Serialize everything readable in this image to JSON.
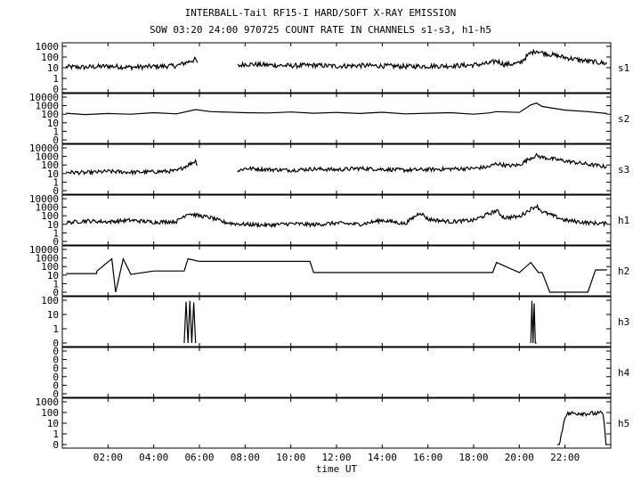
{
  "header": {
    "title": "INTERBALL-Tail RF15-I HARD/SOFT X-RAY EMISSION",
    "subtitle": "SOW 03:20 24:00 970725  COUNT RATE IN CHANNELS s1-s3, h1-h5"
  },
  "chart_data": {
    "type": "line",
    "xlabel": "time UT",
    "x_ticks": [
      "02:00",
      "04:00",
      "06:00",
      "08:00",
      "10:00",
      "12:00",
      "14:00",
      "16:00",
      "18:00",
      "20:00",
      "22:00"
    ],
    "xlim": [
      "00:00",
      "24:00"
    ],
    "y_scale": "log",
    "panels": [
      {
        "name": "s1",
        "yticks": [
          "0",
          "1",
          "10",
          "100",
          "1000"
        ],
        "series": [
          {
            "x": [
              "00:10",
              "01:00",
              "02:00",
              "03:00",
              "04:00",
              "05:00",
              "05:30",
              "05:50",
              "05:55"
            ],
            "y": [
              12,
              11,
              14,
              11,
              13,
              15,
              35,
              60,
              30
            ],
            "noisy": true
          },
          {
            "x": [
              "07:40",
              "08:00",
              "09:00",
              "10:00",
              "11:00",
              "12:00",
              "13:00",
              "14:00",
              "15:00",
              "16:00",
              "17:00",
              "18:00",
              "18:40",
              "19:00",
              "19:20",
              "20:00",
              "20:30",
              "20:45",
              "21:00",
              "22:00",
              "23:00",
              "23:50"
            ],
            "y": [
              14,
              22,
              18,
              15,
              17,
              14,
              16,
              15,
              13,
              14,
              15,
              18,
              25,
              45,
              20,
              25,
              250,
              400,
              250,
              90,
              40,
              25
            ],
            "noisy": true
          }
        ]
      },
      {
        "name": "s2",
        "yticks": [
          "0",
          "1",
          "10",
          "100",
          "1000",
          "10000"
        ],
        "series": [
          {
            "x": [
              "00:10",
              "01:00",
              "02:00",
              "03:00",
              "04:00",
              "05:00",
              "05:50",
              "06:30",
              "08:00",
              "09:00",
              "10:00",
              "11:00",
              "12:00",
              "13:00",
              "14:00",
              "15:00",
              "16:00",
              "17:00",
              "18:00",
              "18:40",
              "19:00",
              "20:00",
              "20:30",
              "20:45",
              "21:00",
              "22:00",
              "23:00",
              "23:50"
            ],
            "y": [
              130,
              90,
              120,
              100,
              150,
              110,
              350,
              200,
              150,
              140,
              180,
              130,
              160,
              120,
              170,
              110,
              130,
              150,
              100,
              140,
              200,
              160,
              1200,
              2000,
              800,
              300,
              200,
              120
            ],
            "noisy": false
          }
        ]
      },
      {
        "name": "s3",
        "yticks": [
          "0",
          "1",
          "10",
          "100",
          "1000",
          "10000"
        ],
        "series": [
          {
            "x": [
              "00:10",
              "01:00",
              "02:00",
              "03:00",
              "04:00",
              "05:00",
              "05:30",
              "05:50",
              "05:55"
            ],
            "y": [
              15,
              12,
              18,
              14,
              16,
              20,
              100,
              300,
              100
            ],
            "noisy": true
          },
          {
            "x": [
              "07:40",
              "08:00",
              "09:00",
              "10:00",
              "11:00",
              "12:00",
              "13:00",
              "14:00",
              "15:00",
              "16:00",
              "17:00",
              "18:00",
              "18:40",
              "19:00",
              "19:30",
              "20:00",
              "20:30",
              "20:45",
              "21:00",
              "22:00",
              "23:00",
              "23:50"
            ],
            "y": [
              20,
              40,
              30,
              25,
              35,
              28,
              40,
              32,
              25,
              30,
              35,
              40,
              60,
              150,
              80,
              100,
              700,
              1200,
              800,
              300,
              120,
              60
            ],
            "noisy": true
          }
        ]
      },
      {
        "name": "h1",
        "yticks": [
          "0",
          "1",
          "10",
          "100",
          "1000",
          "10000"
        ],
        "series": [
          {
            "x": [
              "00:10",
              "01:00",
              "02:00",
              "03:00",
              "04:00",
              "05:00",
              "05:30",
              "05:50",
              "06:30",
              "07:00",
              "07:30",
              "08:00",
              "09:00",
              "10:00",
              "11:00",
              "12:00",
              "13:00",
              "14:00",
              "15:00",
              "15:40",
              "16:00",
              "17:00",
              "18:00",
              "19:00",
              "19:20",
              "20:00",
              "20:30",
              "20:45",
              "21:00",
              "22:00",
              "23:00",
              "23:50"
            ],
            "y": [
              15,
              25,
              20,
              30,
              18,
              22,
              200,
              120,
              60,
              20,
              12,
              10,
              8,
              12,
              9,
              14,
              10,
              30,
              12,
              250,
              40,
              20,
              30,
              400,
              60,
              80,
              600,
              1500,
              300,
              30,
              15,
              12
            ],
            "noisy": true
          }
        ]
      },
      {
        "name": "h2",
        "yticks": [
          "0",
          "1",
          "10",
          "100",
          "1000",
          "10000"
        ],
        "series": [
          {
            "x": [
              "00:10",
              "01:30",
              "01:31",
              "02:10",
              "02:20",
              "02:40",
              "03:00",
              "04:00",
              "05:20",
              "05:30",
              "05:50",
              "06:00",
              "08:00",
              "10:50",
              "11:00",
              "15:40",
              "17:00",
              "18:00",
              "18:50",
              "19:00",
              "20:00",
              "20:30",
              "20:50",
              "21:00",
              "21:20",
              "23:00",
              "23:20",
              "23:50"
            ],
            "y": [
              15,
              15,
              30,
              800,
              0.05,
              800,
              12,
              30,
              30,
              800,
              500,
              400,
              400,
              400,
              20,
              20,
              20,
              20,
              20,
              300,
              20,
              300,
              20,
              20,
              0.1,
              0.1,
              40,
              40
            ],
            "noisy": false
          }
        ]
      },
      {
        "name": "h3",
        "yticks": [
          "0",
          "1",
          "10",
          "100"
        ],
        "series": [
          {
            "x": [
              "05:20",
              "05:25",
              "05:30",
              "05:35",
              "05:40",
              "05:45",
              "05:50"
            ],
            "y": [
              0.1,
              80,
              0.1,
              90,
              0.1,
              70,
              0.1
            ],
            "noisy": false
          },
          {
            "x": [
              "20:30",
              "20:33",
              "20:36",
              "20:39",
              "20:42",
              "20:45"
            ],
            "y": [
              0.1,
              90,
              0.1,
              60,
              0.1,
              0.1
            ],
            "noisy": false
          }
        ]
      },
      {
        "name": "h4",
        "yticks": [
          "0",
          "0",
          "0",
          "0",
          "0",
          "0"
        ],
        "series": []
      },
      {
        "name": "h5",
        "yticks": [
          "0",
          "1",
          "10",
          "100",
          "1000"
        ],
        "series": [
          {
            "x": [
              "21:40",
              "22:00",
              "22:10",
              "22:40",
              "23:00",
              "23:40",
              "23:50"
            ],
            "y": [
              0.01,
              50,
              80,
              90,
              80,
              80,
              0.01
            ],
            "noisy": true
          }
        ]
      }
    ]
  }
}
